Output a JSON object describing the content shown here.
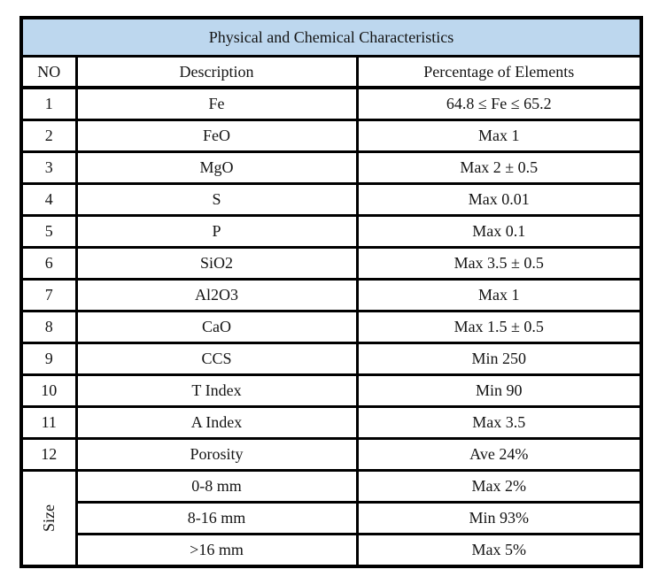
{
  "table": {
    "title": "Physical and Chemical Characteristics",
    "columns": [
      "NO",
      "Description",
      "Percentage of Elements"
    ],
    "rows": [
      {
        "no": "1",
        "description": "Fe",
        "value": "64.8 ≤ Fe ≤ 65.2"
      },
      {
        "no": "2",
        "description": "FeO",
        "value": "Max 1"
      },
      {
        "no": "3",
        "description": "MgO",
        "value": "Max 2 ± 0.5"
      },
      {
        "no": "4",
        "description": "S",
        "value": "Max 0.01"
      },
      {
        "no": "5",
        "description": "P",
        "value": "Max 0.1"
      },
      {
        "no": "6",
        "description": "SiO2",
        "value": "Max 3.5 ± 0.5"
      },
      {
        "no": "7",
        "description": "Al2O3",
        "value": "Max 1"
      },
      {
        "no": "8",
        "description": "CaO",
        "value": "Max 1.5 ± 0.5"
      },
      {
        "no": "9",
        "description": "CCS",
        "value": "Min 250"
      },
      {
        "no": "10",
        "description": "T Index",
        "value": "Min 90"
      },
      {
        "no": "11",
        "description": "A Index",
        "value": "Max 3.5"
      },
      {
        "no": "12",
        "description": "Porosity",
        "value": "Ave 24%"
      }
    ],
    "size_section": {
      "label": "Size",
      "rows": [
        {
          "description": "0-8 mm",
          "value": "Max 2%"
        },
        {
          "description": "8-16 mm",
          "value": "Min 93%"
        },
        {
          "description": ">16 mm",
          "value": "Max 5%"
        }
      ]
    },
    "colors": {
      "title_background": "#BDD7EE",
      "border": "#000000",
      "text": "#141414"
    }
  }
}
